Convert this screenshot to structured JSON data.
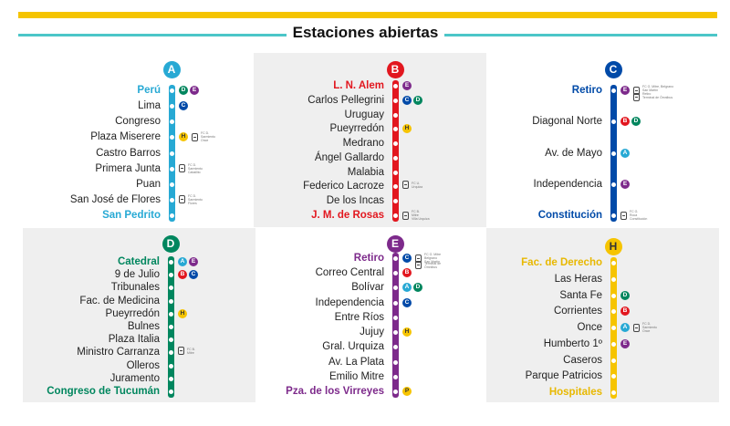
{
  "header": {
    "title": "Estaciones abiertas"
  },
  "colors": {
    "A": "#27a9d4",
    "B": "#e2171f",
    "C": "#004aa8",
    "D": "#00865e",
    "E": "#7d2a8b",
    "H": "#f6c400"
  },
  "lines": [
    {
      "letter": "A",
      "stations": [
        {
          "name": "Perú",
          "terminal": true,
          "connections": [
            "D",
            "E"
          ],
          "trains": []
        },
        {
          "name": "Lima",
          "terminal": false,
          "connections": [
            "C"
          ],
          "trains": []
        },
        {
          "name": "Congreso",
          "terminal": false,
          "connections": [],
          "trains": []
        },
        {
          "name": "Plaza Miserere",
          "terminal": false,
          "connections": [
            "H"
          ],
          "trains": [
            "FC D.\nSarmiento\nOnce"
          ]
        },
        {
          "name": "Castro Barros",
          "terminal": false,
          "connections": [],
          "trains": []
        },
        {
          "name": "Primera Junta",
          "terminal": false,
          "connections": [],
          "trains": [
            "FC D.\nSarmiento\nCaballito"
          ]
        },
        {
          "name": "Puan",
          "terminal": false,
          "connections": [],
          "trains": []
        },
        {
          "name": "San José de Flores",
          "terminal": false,
          "connections": [],
          "trains": [
            "FC D.\nSarmiento\nFlores"
          ]
        },
        {
          "name": "San Pedrito",
          "terminal": true,
          "connections": [],
          "trains": []
        }
      ]
    },
    {
      "letter": "B",
      "stations": [
        {
          "name": "L. N. Alem",
          "terminal": true,
          "connections": [
            "E"
          ],
          "trains": []
        },
        {
          "name": "Carlos Pellegrini",
          "terminal": false,
          "connections": [
            "C",
            "D"
          ],
          "trains": []
        },
        {
          "name": "Uruguay",
          "terminal": false,
          "connections": [],
          "trains": []
        },
        {
          "name": "Pueyrredón",
          "terminal": false,
          "connections": [
            "H"
          ],
          "trains": []
        },
        {
          "name": "Medrano",
          "terminal": false,
          "connections": [],
          "trains": []
        },
        {
          "name": "Ángel Gallardo",
          "terminal": false,
          "connections": [],
          "trains": []
        },
        {
          "name": "Malabia",
          "terminal": false,
          "connections": [],
          "trains": []
        },
        {
          "name": "Federico Lacroze",
          "terminal": false,
          "connections": [],
          "trains": [
            "FC U.\nUrquiza"
          ]
        },
        {
          "name": "De los Incas",
          "terminal": false,
          "connections": [],
          "trains": []
        },
        {
          "name": "J. M. de Rosas",
          "terminal": true,
          "connections": [],
          "trains": [
            "FC B.\nMitre\nVilla Urquiza"
          ]
        }
      ]
    },
    {
      "letter": "C",
      "stations": [
        {
          "name": "Retiro",
          "terminal": true,
          "connections": [
            "E"
          ],
          "trains": [
            "FC G. Mitre, Belgrano\nSan Martín\nRetiro",
            "Terminal de Ómnibus"
          ]
        },
        {
          "name": "Diagonal Norte",
          "terminal": false,
          "connections": [
            "B",
            "D"
          ],
          "trains": []
        },
        {
          "name": "Av. de Mayo",
          "terminal": false,
          "connections": [
            "A"
          ],
          "trains": []
        },
        {
          "name": "Independencia",
          "terminal": false,
          "connections": [
            "E"
          ],
          "trains": []
        },
        {
          "name": "Constitución",
          "terminal": true,
          "connections": [],
          "trains": [
            "FC G.\nRoca\nConstitución"
          ]
        }
      ]
    },
    {
      "letter": "D",
      "stations": [
        {
          "name": "Catedral",
          "terminal": true,
          "connections": [
            "A",
            "E"
          ],
          "trains": []
        },
        {
          "name": "9 de Julio",
          "terminal": false,
          "connections": [
            "B",
            "C"
          ],
          "trains": []
        },
        {
          "name": "Tribunales",
          "terminal": false,
          "connections": [],
          "trains": []
        },
        {
          "name": "Fac. de Medicina",
          "terminal": false,
          "connections": [],
          "trains": []
        },
        {
          "name": "Pueyrredón",
          "terminal": false,
          "connections": [
            "H"
          ],
          "trains": []
        },
        {
          "name": "Bulnes",
          "terminal": false,
          "connections": [],
          "trains": []
        },
        {
          "name": "Plaza Italia",
          "terminal": false,
          "connections": [],
          "trains": []
        },
        {
          "name": "Ministro Carranza",
          "terminal": false,
          "connections": [],
          "trains": [
            "FC B.\nMitre"
          ]
        },
        {
          "name": "Olleros",
          "terminal": false,
          "connections": [],
          "trains": []
        },
        {
          "name": "Juramento",
          "terminal": false,
          "connections": [],
          "trains": []
        },
        {
          "name": "Congreso de Tucumán",
          "terminal": true,
          "connections": [],
          "trains": []
        }
      ]
    },
    {
      "letter": "E",
      "stations": [
        {
          "name": "Retiro",
          "terminal": true,
          "connections": [
            "C"
          ],
          "trains": [
            "FC G. Mitre\nBelgrano\nSan Martín",
            "Terminal de\nÓmnibus"
          ]
        },
        {
          "name": "Correo Central",
          "terminal": false,
          "connections": [
            "B"
          ],
          "trains": []
        },
        {
          "name": "Bolívar",
          "terminal": false,
          "connections": [
            "A",
            "D"
          ],
          "trains": []
        },
        {
          "name": "Independencia",
          "terminal": false,
          "connections": [
            "C"
          ],
          "trains": []
        },
        {
          "name": "Entre Ríos",
          "terminal": false,
          "connections": [],
          "trains": []
        },
        {
          "name": "Jujuy",
          "terminal": false,
          "connections": [
            "H"
          ],
          "trains": []
        },
        {
          "name": "Gral. Urquiza",
          "terminal": false,
          "connections": [],
          "trains": []
        },
        {
          "name": "Av. La Plata",
          "terminal": false,
          "connections": [],
          "trains": []
        },
        {
          "name": "Emilio Mitre",
          "terminal": false,
          "connections": [],
          "trains": []
        },
        {
          "name": "Pza. de los Virreyes",
          "terminal": true,
          "connections": [
            "P"
          ],
          "trains": []
        }
      ]
    },
    {
      "letter": "H",
      "stations": [
        {
          "name": "Fac. de Derecho",
          "terminal": true,
          "connections": [],
          "trains": []
        },
        {
          "name": "Las Heras",
          "terminal": false,
          "connections": [],
          "trains": []
        },
        {
          "name": "Santa Fe",
          "terminal": false,
          "connections": [
            "D"
          ],
          "trains": []
        },
        {
          "name": "Corrientes",
          "terminal": false,
          "connections": [
            "B"
          ],
          "trains": []
        },
        {
          "name": "Once",
          "terminal": false,
          "connections": [
            "A"
          ],
          "trains": [
            "FC D.\nSarmiento\nOnce"
          ]
        },
        {
          "name": "Humberto 1º",
          "terminal": false,
          "connections": [
            "E"
          ],
          "trains": []
        },
        {
          "name": "Caseros",
          "terminal": false,
          "connections": [],
          "trains": []
        },
        {
          "name": "Parque Patricios",
          "terminal": false,
          "connections": [],
          "trains": []
        },
        {
          "name": "Hospitales",
          "terminal": true,
          "connections": [],
          "trains": []
        }
      ]
    }
  ]
}
